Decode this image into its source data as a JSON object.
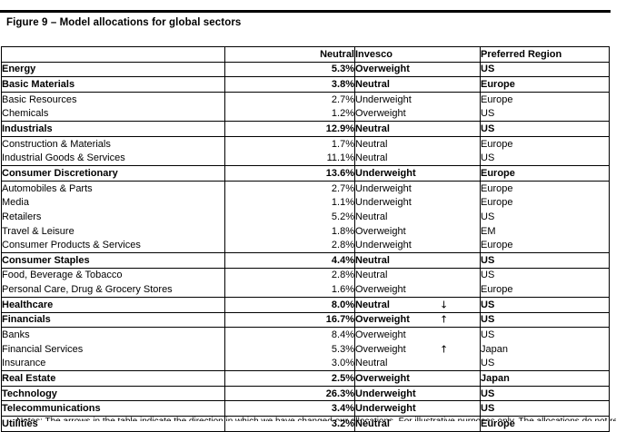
{
  "figure": {
    "title": "Figure 9 – Model allocations for global sectors",
    "notes_partial": "Notes: The arrows in the table indicate the direction in which we have changed our allocations. For illustrative purposes only. The allocations do not represent a portfolio."
  },
  "colors": {
    "text": "#000000",
    "border": "#000000",
    "background": "#ffffff"
  },
  "table": {
    "headers": {
      "name": "",
      "neutral": "Neutral",
      "invesco": "Invesco",
      "region": "Preferred Region"
    },
    "rows": [
      {
        "name": "Energy",
        "neutral": "5.3%",
        "invesco": "Overweight",
        "arrow": "",
        "region": "US",
        "style": "section"
      },
      {
        "name": "Basic Materials",
        "neutral": "3.8%",
        "invesco": "Neutral",
        "arrow": "",
        "region": "Europe",
        "style": "section"
      },
      {
        "name": "Basic Resources",
        "neutral": "2.7%",
        "invesco": "Underweight",
        "arrow": "",
        "region": "Europe",
        "style": "sub"
      },
      {
        "name": "Chemicals",
        "neutral": "1.2%",
        "invesco": "Overweight",
        "arrow": "",
        "region": "US",
        "style": "sub"
      },
      {
        "name": "Industrials",
        "neutral": "12.9%",
        "invesco": "Neutral",
        "arrow": "",
        "region": "US",
        "style": "section"
      },
      {
        "name": "Construction & Materials",
        "neutral": "1.7%",
        "invesco": "Neutral",
        "arrow": "",
        "region": "Europe",
        "style": "sub"
      },
      {
        "name": "Industrial Goods & Services",
        "neutral": "11.1%",
        "invesco": "Neutral",
        "arrow": "",
        "region": "US",
        "style": "sub"
      },
      {
        "name": "Consumer Discretionary",
        "neutral": "13.6%",
        "invesco": "Underweight",
        "arrow": "",
        "region": "Europe",
        "style": "section"
      },
      {
        "name": "Automobiles & Parts",
        "neutral": "2.7%",
        "invesco": "Underweight",
        "arrow": "",
        "region": "Europe",
        "style": "sub"
      },
      {
        "name": "Media",
        "neutral": "1.1%",
        "invesco": "Underweight",
        "arrow": "",
        "region": "Europe",
        "style": "sub"
      },
      {
        "name": "Retailers",
        "neutral": "5.2%",
        "invesco": "Neutral",
        "arrow": "",
        "region": "US",
        "style": "sub"
      },
      {
        "name": "Travel & Leisure",
        "neutral": "1.8%",
        "invesco": "Overweight",
        "arrow": "",
        "region": "EM",
        "style": "sub"
      },
      {
        "name": "Consumer Products & Services",
        "neutral": "2.8%",
        "invesco": "Underweight",
        "arrow": "",
        "region": "Europe",
        "style": "sub"
      },
      {
        "name": "Consumer Staples",
        "neutral": "4.4%",
        "invesco": "Neutral",
        "arrow": "",
        "region": "US",
        "style": "section"
      },
      {
        "name": "Food, Beverage & Tobacco",
        "neutral": "2.8%",
        "invesco": "Neutral",
        "arrow": "",
        "region": "US",
        "style": "sub"
      },
      {
        "name": "Personal Care, Drug & Grocery Stores",
        "neutral": "1.6%",
        "invesco": "Overweight",
        "arrow": "",
        "region": "Europe",
        "style": "sub"
      },
      {
        "name": "Healthcare",
        "neutral": "8.0%",
        "invesco": "Neutral",
        "arrow": "↓",
        "region": "US",
        "style": "section"
      },
      {
        "name": "Financials",
        "neutral": "16.7%",
        "invesco": "Overweight",
        "arrow": "↑",
        "region": "US",
        "style": "section"
      },
      {
        "name": "Banks",
        "neutral": "8.4%",
        "invesco": "Overweight",
        "arrow": "",
        "region": "US",
        "style": "sub"
      },
      {
        "name": "Financial Services",
        "neutral": "5.3%",
        "invesco": "Overweight",
        "arrow": "↑",
        "region": "Japan",
        "style": "sub"
      },
      {
        "name": "Insurance",
        "neutral": "3.0%",
        "invesco": "Neutral",
        "arrow": "",
        "region": "US",
        "style": "sub"
      },
      {
        "name": "Real Estate",
        "neutral": "2.5%",
        "invesco": "Overweight",
        "arrow": "",
        "region": "Japan",
        "style": "section"
      },
      {
        "name": "Technology",
        "neutral": "26.3%",
        "invesco": "Underweight",
        "arrow": "",
        "region": "US",
        "style": "section"
      },
      {
        "name": "Telecommunications",
        "neutral": "3.4%",
        "invesco": "Underweight",
        "arrow": "",
        "region": "US",
        "style": "section"
      },
      {
        "name": "Utilities",
        "neutral": "3.2%",
        "invesco": "Neutral",
        "arrow": "",
        "region": "Europe",
        "style": "section"
      }
    ]
  }
}
